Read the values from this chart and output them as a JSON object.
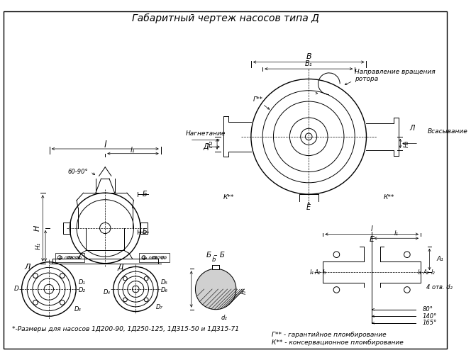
{
  "title": "Габаритный чертеж насосов типа Д",
  "bg_color": "#ffffff",
  "line_color": "#000000",
  "title_fontsize": 10,
  "annotation_fontsize": 7,
  "footnote1": "*-Размеры для насосов 1Д200-90, 1Д250-125, 1Д315-50 и 1Д315-71",
  "footnote2": "Г** - гарантийное пломбирование",
  "footnote3": "К** - консервационное пломбирование",
  "label_direction_rotation": "Направление вращения\nротора",
  "label_nagnetanie": "Нагнетание",
  "label_vsasyvanie": "Всасывание"
}
